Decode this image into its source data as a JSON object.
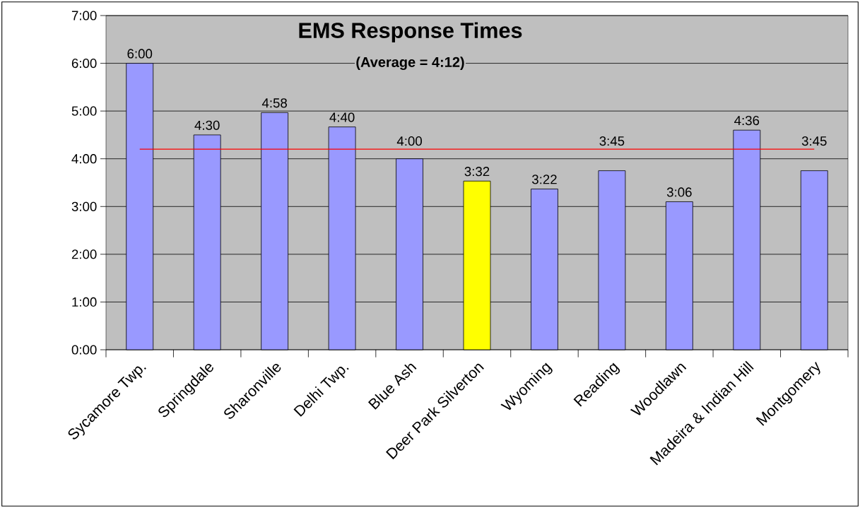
{
  "chart_data": {
    "type": "bar",
    "title": "EMS Response Times",
    "subtitle": "(Average = 4:12)",
    "categories": [
      "Sycamore Twp.",
      "Springdale",
      "Sharonville",
      "Delhi Twp.",
      "Blue Ash",
      "Deer Park Silverton",
      "Wyoming",
      "Reading",
      "Woodlawn",
      "Madeira & Indian Hill",
      "Montgomery"
    ],
    "values": [
      6,
      4.5,
      4.967,
      4.667,
      4,
      3.533,
      3.367,
      3.75,
      3.1,
      4.6,
      3.75
    ],
    "colors": [
      "#9999ff",
      "#9999ff",
      "#9999ff",
      "#9999ff",
      "#9999ff",
      "#ffff00",
      "#9999ff",
      "#9999ff",
      "#9999ff",
      "#9999ff",
      "#9999ff"
    ],
    "value_labels": [
      "6:00",
      "4:30",
      "4:58",
      "4:40",
      "4:00",
      "3:32",
      "3:22",
      "3:45",
      "3:06",
      "4:36",
      "3:45"
    ],
    "ylim": [
      0,
      7
    ],
    "yticks": [
      {
        "value": 0,
        "label": "0:00"
      },
      {
        "value": 1,
        "label": "1:00"
      },
      {
        "value": 2,
        "label": "2:00"
      },
      {
        "value": 3,
        "label": "3:00"
      },
      {
        "value": 4,
        "label": "4:00"
      },
      {
        "value": 5,
        "label": "5:00"
      },
      {
        "value": 6,
        "label": "6:00"
      },
      {
        "value": 7,
        "label": "7:00"
      }
    ],
    "ref_lines": [
      {
        "axis": "y",
        "value": 4.2,
        "color": "#ff0000"
      }
    ],
    "grid": "y"
  }
}
